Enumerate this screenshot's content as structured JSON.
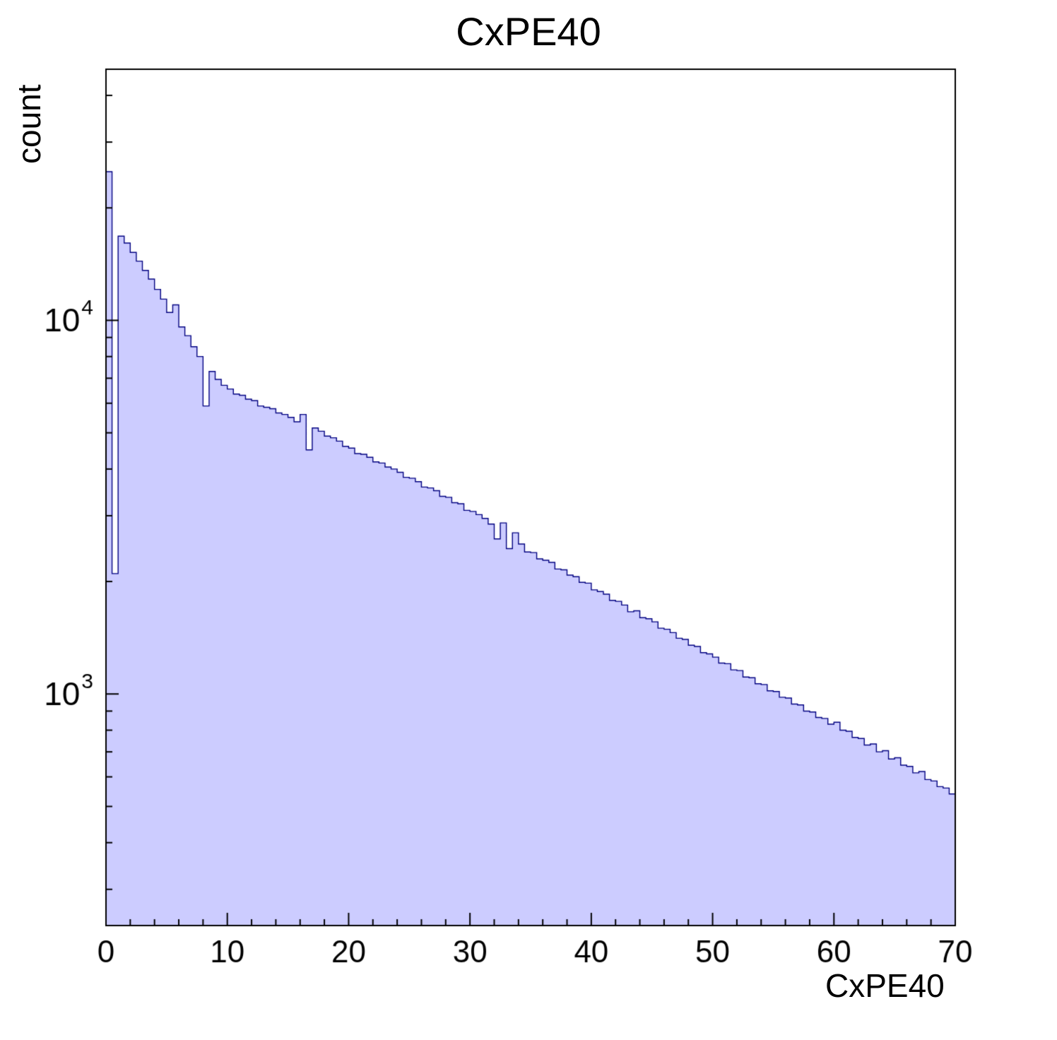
{
  "title": "CxPE40",
  "x_axis_label": "CxPE40",
  "y_axis_label": "count",
  "chart_data": {
    "type": "bar",
    "subtype": "histogram-log-y",
    "title": "CxPE40",
    "xlabel": "CxPE40",
    "ylabel": "count",
    "xlim": [
      0,
      70
    ],
    "ylim": [
      240,
      47000
    ],
    "y_scale": "log",
    "x_major_ticks": [
      0,
      10,
      20,
      30,
      40,
      50,
      60,
      70
    ],
    "x_minor_step": 2,
    "y_tick_exponents": [
      3,
      4
    ],
    "legend": "none",
    "grid": false,
    "fill_color": "#ccccff",
    "line_color": "#000080",
    "frame_color": "#000000",
    "bin_width": 0.5,
    "x_start": 0,
    "values": [
      25000,
      2100,
      16800,
      16100,
      15200,
      14400,
      13600,
      12900,
      12100,
      11400,
      10500,
      11000,
      9600,
      9100,
      8500,
      8000,
      5900,
      7300,
      6950,
      6700,
      6550,
      6350,
      6300,
      6150,
      6100,
      5900,
      5850,
      5800,
      5650,
      5600,
      5500,
      5350,
      5600,
      4500,
      5150,
      5050,
      4900,
      4850,
      4750,
      4600,
      4550,
      4400,
      4380,
      4300,
      4180,
      4150,
      4050,
      4000,
      3920,
      3800,
      3780,
      3700,
      3580,
      3560,
      3500,
      3380,
      3360,
      3250,
      3230,
      3100,
      3080,
      3020,
      2950,
      2850,
      2600,
      2870,
      2450,
      2700,
      2520,
      2400,
      2390,
      2300,
      2280,
      2250,
      2160,
      2150,
      2080,
      2060,
      1990,
      1980,
      1900,
      1880,
      1850,
      1780,
      1770,
      1730,
      1660,
      1670,
      1600,
      1590,
      1560,
      1500,
      1490,
      1460,
      1410,
      1400,
      1350,
      1340,
      1290,
      1280,
      1255,
      1210,
      1205,
      1160,
      1155,
      1110,
      1105,
      1065,
      1060,
      1020,
      1015,
      980,
      975,
      940,
      935,
      900,
      895,
      865,
      860,
      830,
      840,
      800,
      795,
      765,
      760,
      730,
      735,
      700,
      705,
      670,
      675,
      645,
      640,
      615,
      620,
      590,
      585,
      565,
      560,
      540
    ]
  }
}
